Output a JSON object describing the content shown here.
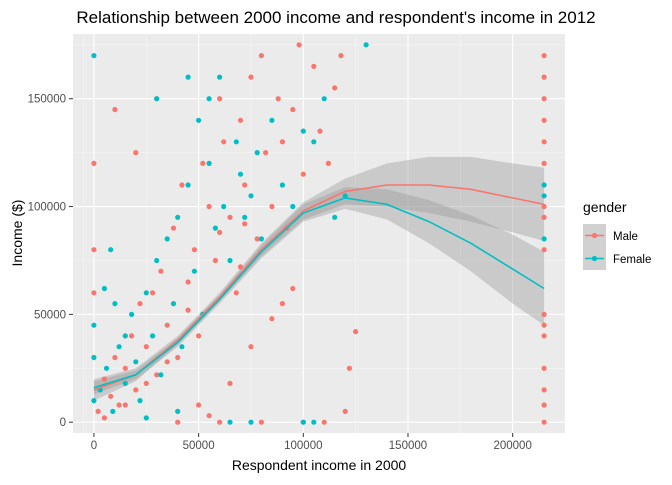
{
  "chart_data": {
    "type": "scatter",
    "title": "Relationship between 2000 income and respondent's income in 2012",
    "xlabel": "Respondent income in 2000",
    "ylabel": "Income ($)",
    "xlim": [
      -10000,
      225000
    ],
    "ylim": [
      -5000,
      180000
    ],
    "x_ticks": [
      0,
      50000,
      100000,
      150000,
      200000
    ],
    "x_tick_labels": [
      "0",
      "50000",
      "100000",
      "150000",
      "200000"
    ],
    "y_ticks": [
      0,
      50000,
      100000,
      150000
    ],
    "y_tick_labels": [
      "0",
      "50000",
      "100000",
      "150000"
    ],
    "grid": true,
    "legend": {
      "title": "gender",
      "placement": "right",
      "entries": [
        {
          "label": "Male",
          "color": "#F8766D"
        },
        {
          "label": "Female",
          "color": "#00BFC4"
        }
      ]
    },
    "series": [
      {
        "name": "Male",
        "color": "#F8766D",
        "smooth": {
          "x": [
            0,
            20000,
            40000,
            60000,
            80000,
            100000,
            120000,
            140000,
            160000,
            180000,
            200000,
            215000
          ],
          "y": [
            15000,
            22000,
            38000,
            58000,
            80000,
            98000,
            107000,
            110000,
            110000,
            108000,
            104000,
            101000
          ],
          "ci_low": [
            10000,
            19000,
            36000,
            56000,
            77000,
            94000,
            101000,
            100000,
            97000,
            93000,
            88000,
            84000
          ],
          "ci_high": [
            20000,
            25000,
            40000,
            60000,
            83000,
            102000,
            113000,
            120000,
            123000,
            123000,
            120000,
            118000
          ]
        },
        "points": [
          [
            2000,
            5000
          ],
          [
            5000,
            20000
          ],
          [
            8000,
            12000
          ],
          [
            10000,
            30000
          ],
          [
            12000,
            8000
          ],
          [
            15000,
            25000
          ],
          [
            18000,
            40000
          ],
          [
            20000,
            15000
          ],
          [
            22000,
            55000
          ],
          [
            25000,
            35000
          ],
          [
            28000,
            60000
          ],
          [
            30000,
            22000
          ],
          [
            32000,
            70000
          ],
          [
            35000,
            45000
          ],
          [
            38000,
            90000
          ],
          [
            40000,
            30000
          ],
          [
            42000,
            110000
          ],
          [
            45000,
            65000
          ],
          [
            48000,
            80000
          ],
          [
            50000,
            40000
          ],
          [
            52000,
            120000
          ],
          [
            55000,
            100000
          ],
          [
            58000,
            75000
          ],
          [
            60000,
            150000
          ],
          [
            62000,
            130000
          ],
          [
            65000,
            95000
          ],
          [
            68000,
            60000
          ],
          [
            70000,
            140000
          ],
          [
            72000,
            110000
          ],
          [
            75000,
            160000
          ],
          [
            78000,
            85000
          ],
          [
            80000,
            170000
          ],
          [
            82000,
            125000
          ],
          [
            85000,
            100000
          ],
          [
            88000,
            150000
          ],
          [
            90000,
            130000
          ],
          [
            92000,
            90000
          ],
          [
            95000,
            145000
          ],
          [
            98000,
            175000
          ],
          [
            100000,
            115000
          ],
          [
            105000,
            165000
          ],
          [
            108000,
            135000
          ],
          [
            112000,
            120000
          ],
          [
            115000,
            155000
          ],
          [
            118000,
            170000
          ],
          [
            120000,
            5000
          ],
          [
            122000,
            25000
          ],
          [
            125000,
            42000
          ],
          [
            60000,
            0
          ],
          [
            80000,
            0
          ],
          [
            40000,
            0
          ],
          [
            100000,
            0
          ],
          [
            110000,
            0
          ],
          [
            90000,
            55000
          ],
          [
            30000,
            150000
          ],
          [
            20000,
            125000
          ],
          [
            10000,
            145000
          ],
          [
            0,
            120000
          ],
          [
            0,
            80000
          ],
          [
            0,
            60000
          ],
          [
            215000,
            170000
          ],
          [
            215000,
            160000
          ],
          [
            215000,
            150000
          ],
          [
            215000,
            140000
          ],
          [
            215000,
            130000
          ],
          [
            215000,
            120000
          ],
          [
            215000,
            100000
          ],
          [
            215000,
            95000
          ],
          [
            215000,
            80000
          ],
          [
            215000,
            50000
          ],
          [
            215000,
            45000
          ],
          [
            215000,
            40000
          ],
          [
            215000,
            25000
          ],
          [
            215000,
            15000
          ],
          [
            215000,
            8000
          ],
          [
            215000,
            0
          ],
          [
            50000,
            8000
          ],
          [
            55000,
            3000
          ],
          [
            65000,
            18000
          ],
          [
            75000,
            35000
          ],
          [
            85000,
            48000
          ],
          [
            95000,
            62000
          ],
          [
            70000,
            72000
          ],
          [
            45000,
            52000
          ],
          [
            35000,
            28000
          ],
          [
            25000,
            18000
          ],
          [
            15000,
            8000
          ],
          [
            5000,
            2000
          ],
          [
            60000,
            88000
          ],
          [
            72000,
            92000
          ]
        ]
      },
      {
        "name": "Female",
        "color": "#00BFC4",
        "smooth": {
          "x": [
            0,
            20000,
            40000,
            60000,
            80000,
            100000,
            120000,
            140000,
            160000,
            180000,
            200000,
            215000
          ],
          "y": [
            16000,
            22000,
            37000,
            57000,
            79000,
            97000,
            104000,
            101000,
            93000,
            83000,
            71000,
            62000
          ],
          "ci_low": [
            13000,
            20000,
            35000,
            55000,
            76000,
            93000,
            99000,
            94000,
            83000,
            70000,
            55000,
            45000
          ],
          "ci_high": [
            19000,
            24000,
            39000,
            59000,
            82000,
            101000,
            109000,
            108000,
            103000,
            96000,
            87000,
            79000
          ]
        },
        "points": [
          [
            0,
            170000
          ],
          [
            0,
            10000
          ],
          [
            0,
            30000
          ],
          [
            0,
            45000
          ],
          [
            3000,
            15000
          ],
          [
            6000,
            25000
          ],
          [
            9000,
            5000
          ],
          [
            12000,
            35000
          ],
          [
            15000,
            18000
          ],
          [
            18000,
            50000
          ],
          [
            20000,
            28000
          ],
          [
            22000,
            10000
          ],
          [
            25000,
            60000
          ],
          [
            28000,
            40000
          ],
          [
            30000,
            75000
          ],
          [
            32000,
            22000
          ],
          [
            35000,
            85000
          ],
          [
            38000,
            55000
          ],
          [
            40000,
            95000
          ],
          [
            42000,
            35000
          ],
          [
            45000,
            110000
          ],
          [
            48000,
            70000
          ],
          [
            50000,
            140000
          ],
          [
            52000,
            50000
          ],
          [
            55000,
            120000
          ],
          [
            58000,
            90000
          ],
          [
            60000,
            160000
          ],
          [
            62000,
            100000
          ],
          [
            65000,
            75000
          ],
          [
            68000,
            130000
          ],
          [
            70000,
            115000
          ],
          [
            72000,
            95000
          ],
          [
            75000,
            105000
          ],
          [
            78000,
            125000
          ],
          [
            80000,
            85000
          ],
          [
            85000,
            140000
          ],
          [
            90000,
            110000
          ],
          [
            95000,
            100000
          ],
          [
            100000,
            135000
          ],
          [
            105000,
            130000
          ],
          [
            110000,
            150000
          ],
          [
            115000,
            95000
          ],
          [
            120000,
            105000
          ],
          [
            130000,
            175000
          ],
          [
            65000,
            0
          ],
          [
            75000,
            0
          ],
          [
            100000,
            0
          ],
          [
            105000,
            0
          ],
          [
            40000,
            5000
          ],
          [
            25000,
            2000
          ],
          [
            15000,
            40000
          ],
          [
            10000,
            55000
          ],
          [
            5000,
            62000
          ],
          [
            8000,
            80000
          ],
          [
            215000,
            110000
          ],
          [
            215000,
            105000
          ],
          [
            215000,
            85000
          ],
          [
            30000,
            150000
          ],
          [
            45000,
            160000
          ],
          [
            55000,
            150000
          ]
        ]
      }
    ]
  }
}
